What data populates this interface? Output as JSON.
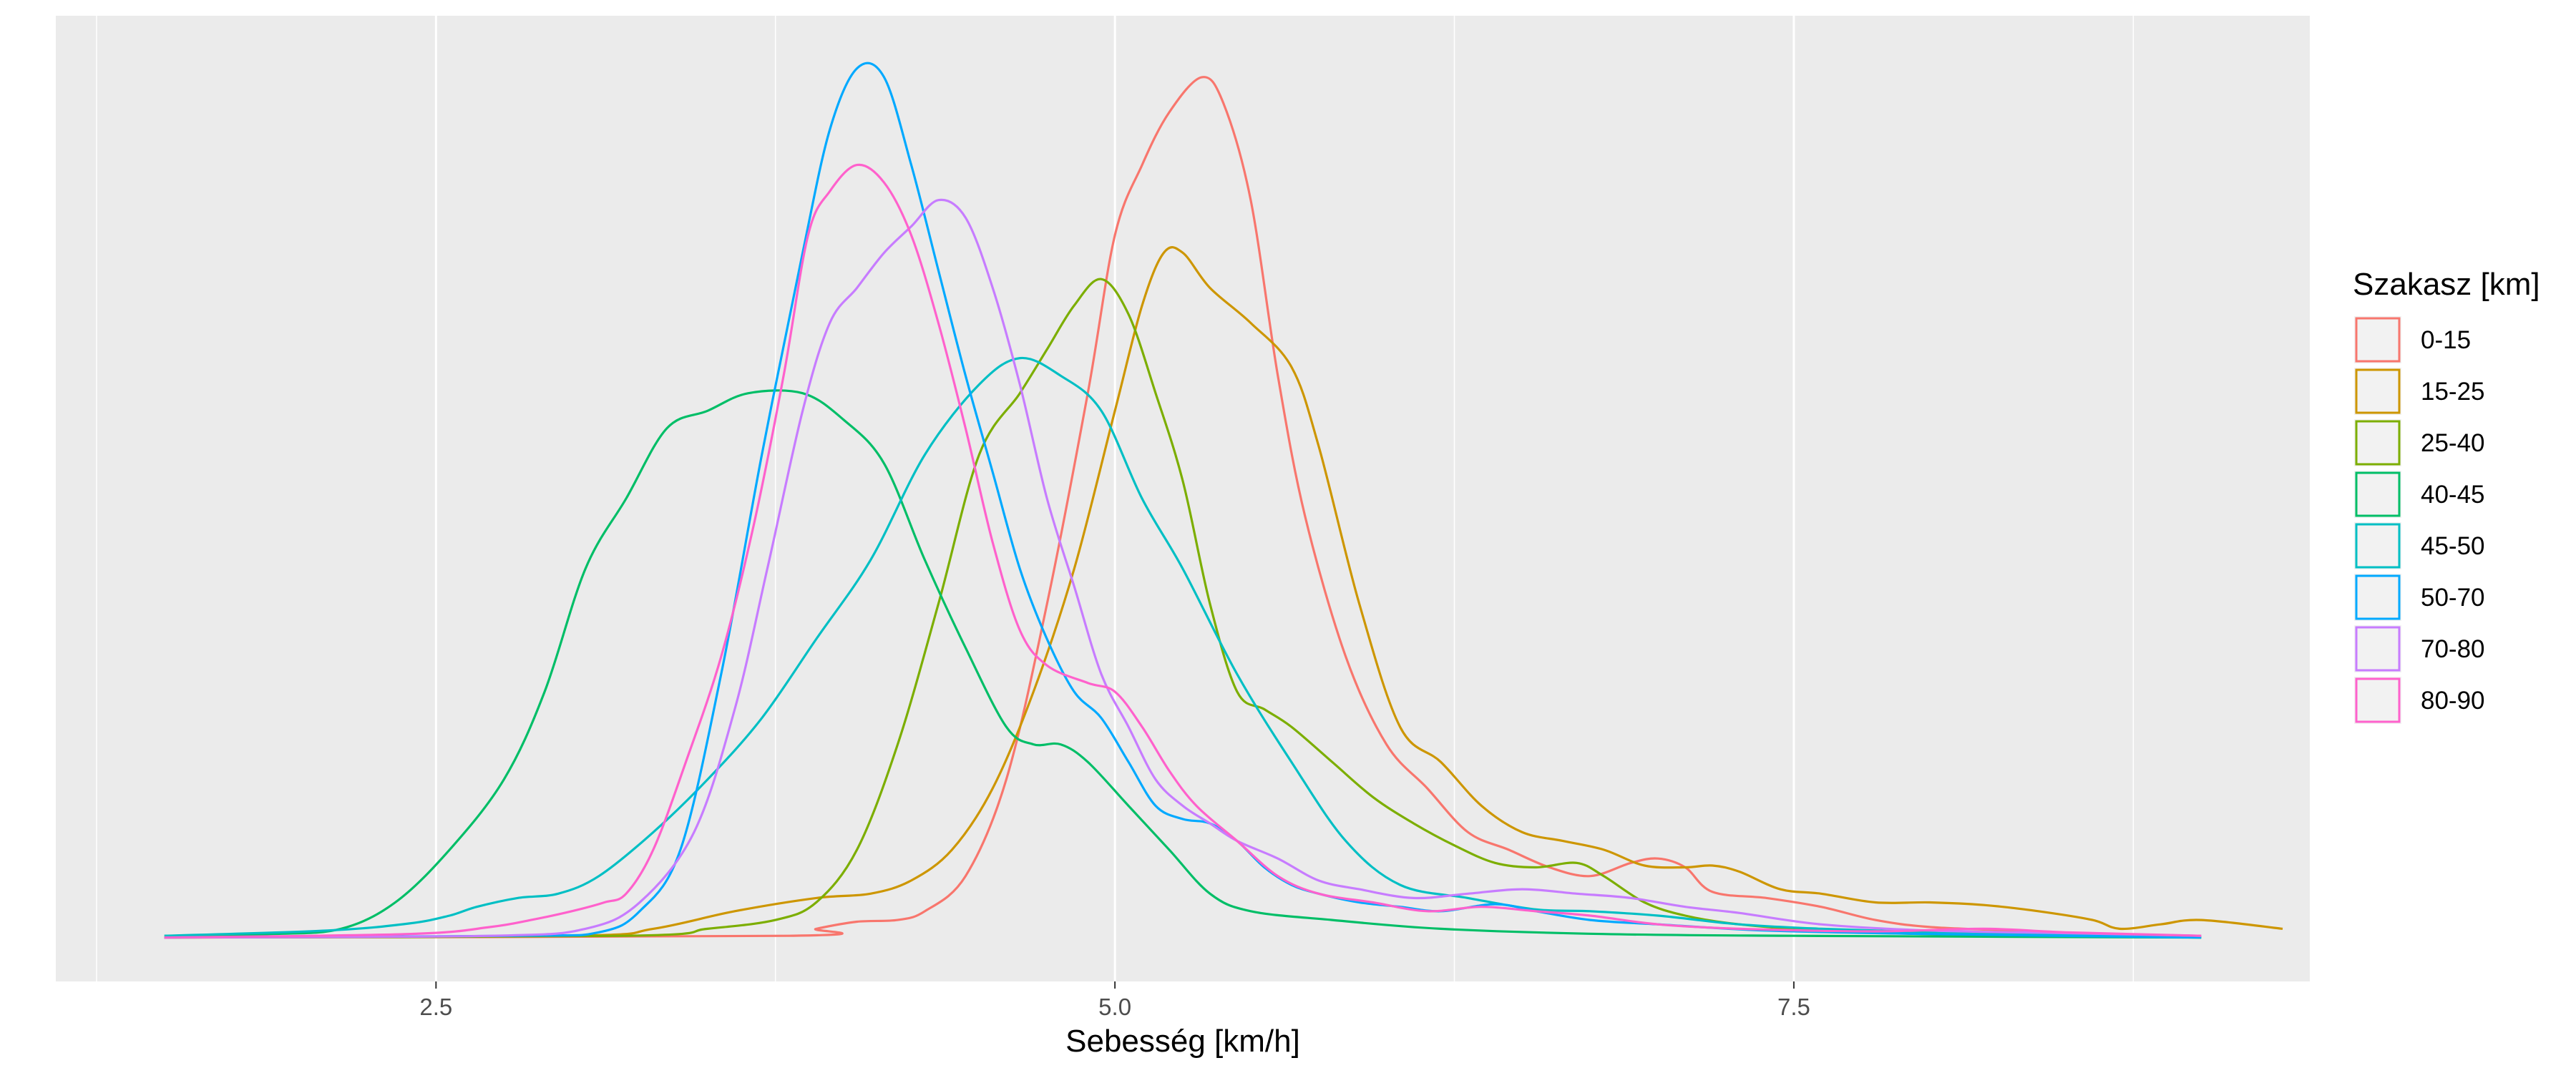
{
  "chart_data": {
    "type": "line",
    "xlabel": "Sebesség [km/h]",
    "ylabel": "",
    "xlim": [
      1.1,
      9.4
    ],
    "ylim": [
      -0.05,
      1.05
    ],
    "xticks": [
      2.5,
      5.0,
      7.5
    ],
    "xtick_labels": [
      "2.5",
      "5.0",
      "7.5"
    ],
    "y_axis_visible": false,
    "grid": true,
    "panel_background": "#ebebeb",
    "grid_color": "#ffffff",
    "legend": {
      "title": "Szakasz [km]",
      "position": "right"
    },
    "series": [
      {
        "name": "0-15",
        "color": "#F8766D",
        "points": [
          [
            1.5,
            0
          ],
          [
            3.8,
            0.002
          ],
          [
            3.9,
            0.01
          ],
          [
            4.05,
            0.018
          ],
          [
            4.2,
            0.02
          ],
          [
            4.3,
            0.03
          ],
          [
            4.45,
            0.07
          ],
          [
            4.6,
            0.18
          ],
          [
            4.75,
            0.38
          ],
          [
            4.9,
            0.62
          ],
          [
            5.0,
            0.8
          ],
          [
            5.1,
            0.88
          ],
          [
            5.2,
            0.94
          ],
          [
            5.32,
            0.98
          ],
          [
            5.4,
            0.95
          ],
          [
            5.5,
            0.84
          ],
          [
            5.6,
            0.64
          ],
          [
            5.7,
            0.48
          ],
          [
            5.85,
            0.32
          ],
          [
            6.0,
            0.22
          ],
          [
            6.15,
            0.17
          ],
          [
            6.3,
            0.12
          ],
          [
            6.45,
            0.1
          ],
          [
            6.6,
            0.08
          ],
          [
            6.75,
            0.07
          ],
          [
            6.9,
            0.085
          ],
          [
            7.0,
            0.09
          ],
          [
            7.1,
            0.08
          ],
          [
            7.2,
            0.052
          ],
          [
            7.4,
            0.045
          ],
          [
            7.6,
            0.035
          ],
          [
            7.8,
            0.02
          ],
          [
            8.0,
            0.012
          ],
          [
            8.3,
            0.008
          ],
          [
            8.6,
            0.004
          ],
          [
            9.0,
            0.002
          ]
        ]
      },
      {
        "name": "15-25",
        "color": "#CD9600",
        "points": [
          [
            1.5,
            0
          ],
          [
            3.0,
            0.002
          ],
          [
            3.3,
            0.01
          ],
          [
            3.6,
            0.03
          ],
          [
            3.9,
            0.045
          ],
          [
            4.1,
            0.05
          ],
          [
            4.25,
            0.065
          ],
          [
            4.4,
            0.1
          ],
          [
            4.55,
            0.17
          ],
          [
            4.7,
            0.28
          ],
          [
            4.85,
            0.42
          ],
          [
            5.0,
            0.6
          ],
          [
            5.1,
            0.72
          ],
          [
            5.18,
            0.78
          ],
          [
            5.25,
            0.78
          ],
          [
            5.35,
            0.74
          ],
          [
            5.5,
            0.7
          ],
          [
            5.65,
            0.65
          ],
          [
            5.75,
            0.56
          ],
          [
            5.9,
            0.38
          ],
          [
            6.05,
            0.24
          ],
          [
            6.2,
            0.2
          ],
          [
            6.35,
            0.15
          ],
          [
            6.5,
            0.12
          ],
          [
            6.65,
            0.11
          ],
          [
            6.8,
            0.1
          ],
          [
            6.95,
            0.082
          ],
          [
            7.1,
            0.08
          ],
          [
            7.2,
            0.082
          ],
          [
            7.3,
            0.075
          ],
          [
            7.45,
            0.055
          ],
          [
            7.6,
            0.05
          ],
          [
            7.8,
            0.04
          ],
          [
            8.0,
            0.04
          ],
          [
            8.2,
            0.037
          ],
          [
            8.4,
            0.03
          ],
          [
            8.6,
            0.02
          ],
          [
            8.7,
            0.01
          ],
          [
            8.85,
            0.015
          ],
          [
            9.0,
            0.02
          ],
          [
            9.3,
            0.01
          ]
        ]
      },
      {
        "name": "25-40",
        "color": "#7CAE00",
        "points": [
          [
            1.5,
            0
          ],
          [
            3.2,
            0.002
          ],
          [
            3.5,
            0.01
          ],
          [
            3.75,
            0.02
          ],
          [
            3.9,
            0.04
          ],
          [
            4.05,
            0.1
          ],
          [
            4.2,
            0.22
          ],
          [
            4.35,
            0.38
          ],
          [
            4.5,
            0.55
          ],
          [
            4.65,
            0.62
          ],
          [
            4.75,
            0.67
          ],
          [
            4.85,
            0.72
          ],
          [
            4.95,
            0.75
          ],
          [
            5.05,
            0.71
          ],
          [
            5.15,
            0.62
          ],
          [
            5.25,
            0.52
          ],
          [
            5.35,
            0.38
          ],
          [
            5.45,
            0.28
          ],
          [
            5.55,
            0.26
          ],
          [
            5.65,
            0.24
          ],
          [
            5.8,
            0.2
          ],
          [
            5.95,
            0.16
          ],
          [
            6.1,
            0.13
          ],
          [
            6.25,
            0.105
          ],
          [
            6.4,
            0.085
          ],
          [
            6.55,
            0.08
          ],
          [
            6.7,
            0.085
          ],
          [
            6.8,
            0.07
          ],
          [
            6.95,
            0.04
          ],
          [
            7.1,
            0.025
          ],
          [
            7.3,
            0.015
          ],
          [
            7.6,
            0.008
          ],
          [
            8.0,
            0.004
          ],
          [
            9.0,
            0
          ]
        ]
      },
      {
        "name": "40-45",
        "color": "#00BE67",
        "points": [
          [
            1.5,
            0.002
          ],
          [
            1.9,
            0.004
          ],
          [
            2.15,
            0.01
          ],
          [
            2.35,
            0.04
          ],
          [
            2.55,
            0.1
          ],
          [
            2.75,
            0.18
          ],
          [
            2.9,
            0.28
          ],
          [
            3.05,
            0.42
          ],
          [
            3.2,
            0.5
          ],
          [
            3.35,
            0.58
          ],
          [
            3.5,
            0.6
          ],
          [
            3.65,
            0.62
          ],
          [
            3.85,
            0.62
          ],
          [
            4.0,
            0.59
          ],
          [
            4.15,
            0.54
          ],
          [
            4.3,
            0.43
          ],
          [
            4.45,
            0.33
          ],
          [
            4.6,
            0.24
          ],
          [
            4.7,
            0.22
          ],
          [
            4.8,
            0.22
          ],
          [
            4.9,
            0.2
          ],
          [
            5.05,
            0.15
          ],
          [
            5.2,
            0.1
          ],
          [
            5.35,
            0.05
          ],
          [
            5.5,
            0.03
          ],
          [
            5.8,
            0.02
          ],
          [
            6.2,
            0.01
          ],
          [
            6.8,
            0.004
          ],
          [
            7.5,
            0.002
          ],
          [
            9.0,
            0
          ]
        ]
      },
      {
        "name": "45-50",
        "color": "#00BFC4",
        "points": [
          [
            1.5,
            0.002
          ],
          [
            2.1,
            0.008
          ],
          [
            2.4,
            0.016
          ],
          [
            2.55,
            0.025
          ],
          [
            2.65,
            0.035
          ],
          [
            2.8,
            0.045
          ],
          [
            2.95,
            0.05
          ],
          [
            3.1,
            0.07
          ],
          [
            3.3,
            0.12
          ],
          [
            3.5,
            0.18
          ],
          [
            3.7,
            0.25
          ],
          [
            3.9,
            0.34
          ],
          [
            4.1,
            0.43
          ],
          [
            4.3,
            0.55
          ],
          [
            4.5,
            0.63
          ],
          [
            4.65,
            0.66
          ],
          [
            4.8,
            0.64
          ],
          [
            4.95,
            0.6
          ],
          [
            5.1,
            0.5
          ],
          [
            5.25,
            0.42
          ],
          [
            5.45,
            0.3
          ],
          [
            5.65,
            0.2
          ],
          [
            5.85,
            0.11
          ],
          [
            6.05,
            0.06
          ],
          [
            6.3,
            0.045
          ],
          [
            6.55,
            0.032
          ],
          [
            6.75,
            0.03
          ],
          [
            7.0,
            0.025
          ],
          [
            7.3,
            0.015
          ],
          [
            7.6,
            0.01
          ],
          [
            8.0,
            0.006
          ],
          [
            8.5,
            0.003
          ],
          [
            9.0,
            0.001
          ]
        ]
      },
      {
        "name": "50-70",
        "color": "#00A9FF",
        "points": [
          [
            1.5,
            0
          ],
          [
            2.8,
            0.002
          ],
          [
            3.1,
            0.006
          ],
          [
            3.25,
            0.03
          ],
          [
            3.4,
            0.1
          ],
          [
            3.55,
            0.3
          ],
          [
            3.7,
            0.55
          ],
          [
            3.85,
            0.78
          ],
          [
            3.95,
            0.92
          ],
          [
            4.05,
            0.99
          ],
          [
            4.15,
            0.98
          ],
          [
            4.25,
            0.88
          ],
          [
            4.35,
            0.76
          ],
          [
            4.45,
            0.64
          ],
          [
            4.55,
            0.53
          ],
          [
            4.65,
            0.42
          ],
          [
            4.75,
            0.34
          ],
          [
            4.85,
            0.28
          ],
          [
            4.95,
            0.25
          ],
          [
            5.05,
            0.2
          ],
          [
            5.15,
            0.15
          ],
          [
            5.25,
            0.135
          ],
          [
            5.35,
            0.13
          ],
          [
            5.45,
            0.11
          ],
          [
            5.55,
            0.08
          ],
          [
            5.65,
            0.06
          ],
          [
            5.75,
            0.05
          ],
          [
            5.9,
            0.04
          ],
          [
            6.05,
            0.035
          ],
          [
            6.2,
            0.03
          ],
          [
            6.4,
            0.038
          ],
          [
            6.55,
            0.03
          ],
          [
            6.75,
            0.02
          ],
          [
            7.0,
            0.015
          ],
          [
            7.4,
            0.008
          ],
          [
            8.0,
            0.004
          ],
          [
            9.0,
            0
          ]
        ]
      },
      {
        "name": "70-80",
        "color": "#C77CFF",
        "points": [
          [
            1.5,
            0
          ],
          [
            2.7,
            0.002
          ],
          [
            3.05,
            0.01
          ],
          [
            3.25,
            0.04
          ],
          [
            3.45,
            0.12
          ],
          [
            3.6,
            0.26
          ],
          [
            3.72,
            0.42
          ],
          [
            3.85,
            0.6
          ],
          [
            3.95,
            0.7
          ],
          [
            4.05,
            0.74
          ],
          [
            4.15,
            0.78
          ],
          [
            4.25,
            0.81
          ],
          [
            4.35,
            0.84
          ],
          [
            4.45,
            0.82
          ],
          [
            4.55,
            0.74
          ],
          [
            4.65,
            0.63
          ],
          [
            4.75,
            0.5
          ],
          [
            4.85,
            0.4
          ],
          [
            4.95,
            0.3
          ],
          [
            5.05,
            0.24
          ],
          [
            5.15,
            0.18
          ],
          [
            5.25,
            0.15
          ],
          [
            5.35,
            0.13
          ],
          [
            5.45,
            0.11
          ],
          [
            5.6,
            0.09
          ],
          [
            5.75,
            0.065
          ],
          [
            5.9,
            0.055
          ],
          [
            6.1,
            0.045
          ],
          [
            6.3,
            0.05
          ],
          [
            6.5,
            0.055
          ],
          [
            6.7,
            0.05
          ],
          [
            6.9,
            0.045
          ],
          [
            7.1,
            0.035
          ],
          [
            7.3,
            0.028
          ],
          [
            7.6,
            0.015
          ],
          [
            8.0,
            0.008
          ],
          [
            8.5,
            0.005
          ],
          [
            9.0,
            0.002
          ]
        ]
      },
      {
        "name": "80-90",
        "color": "#FF61CC",
        "points": [
          [
            1.5,
            0
          ],
          [
            2.4,
            0.004
          ],
          [
            2.7,
            0.012
          ],
          [
            2.85,
            0.02
          ],
          [
            3.0,
            0.03
          ],
          [
            3.12,
            0.04
          ],
          [
            3.2,
            0.05
          ],
          [
            3.3,
            0.1
          ],
          [
            3.42,
            0.2
          ],
          [
            3.55,
            0.32
          ],
          [
            3.67,
            0.47
          ],
          [
            3.78,
            0.64
          ],
          [
            3.87,
            0.8
          ],
          [
            3.95,
            0.85
          ],
          [
            4.05,
            0.88
          ],
          [
            4.15,
            0.86
          ],
          [
            4.25,
            0.8
          ],
          [
            4.35,
            0.7
          ],
          [
            4.45,
            0.58
          ],
          [
            4.55,
            0.45
          ],
          [
            4.65,
            0.35
          ],
          [
            4.75,
            0.31
          ],
          [
            4.9,
            0.29
          ],
          [
            5.0,
            0.28
          ],
          [
            5.1,
            0.24
          ],
          [
            5.2,
            0.19
          ],
          [
            5.3,
            0.15
          ],
          [
            5.45,
            0.11
          ],
          [
            5.6,
            0.07
          ],
          [
            5.75,
            0.05
          ],
          [
            5.95,
            0.04
          ],
          [
            6.15,
            0.03
          ],
          [
            6.35,
            0.035
          ],
          [
            6.55,
            0.03
          ],
          [
            6.75,
            0.025
          ],
          [
            7.0,
            0.015
          ],
          [
            7.3,
            0.01
          ],
          [
            7.8,
            0.007
          ],
          [
            8.2,
            0.01
          ],
          [
            8.5,
            0.006
          ],
          [
            9.0,
            0.002
          ]
        ]
      }
    ]
  }
}
